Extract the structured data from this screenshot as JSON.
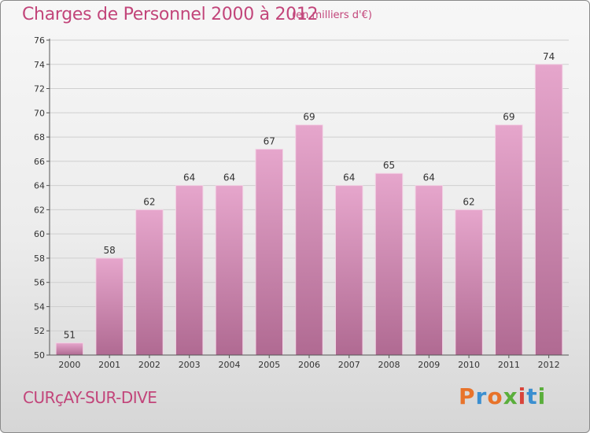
{
  "header": {
    "title": "Charges de Personnel 2000 à 2012",
    "subtitle": "(en milliers d'€)"
  },
  "footer": {
    "place": "CURçAY-SUR-DIVE",
    "logo": "Proxiti",
    "logo_colors": [
      "#e8732a",
      "#3b8fd0",
      "#e8732a",
      "#5aae3b",
      "#d9443a",
      "#3b8fd0",
      "#5aae3b"
    ]
  },
  "colors": {
    "bar_top": "#e6a6cc",
    "bar_bottom": "#b06a92",
    "text": "#c2457a",
    "axis": "#555555",
    "grid": "#cfcfcf"
  },
  "chart_data": {
    "type": "bar",
    "title": "Charges de Personnel 2000 à 2012",
    "subtitle": "(en milliers d'€)",
    "categories": [
      "2000",
      "2001",
      "2002",
      "2003",
      "2004",
      "2005",
      "2006",
      "2007",
      "2008",
      "2009",
      "2010",
      "2011",
      "2012"
    ],
    "values": [
      51,
      58,
      62,
      64,
      64,
      67,
      69,
      64,
      65,
      64,
      62,
      69,
      74
    ],
    "ylim": [
      50,
      76
    ],
    "yticks": [
      50,
      52,
      54,
      56,
      58,
      60,
      62,
      64,
      66,
      68,
      70,
      72,
      74,
      76
    ],
    "grid": true,
    "data_labels": true
  }
}
